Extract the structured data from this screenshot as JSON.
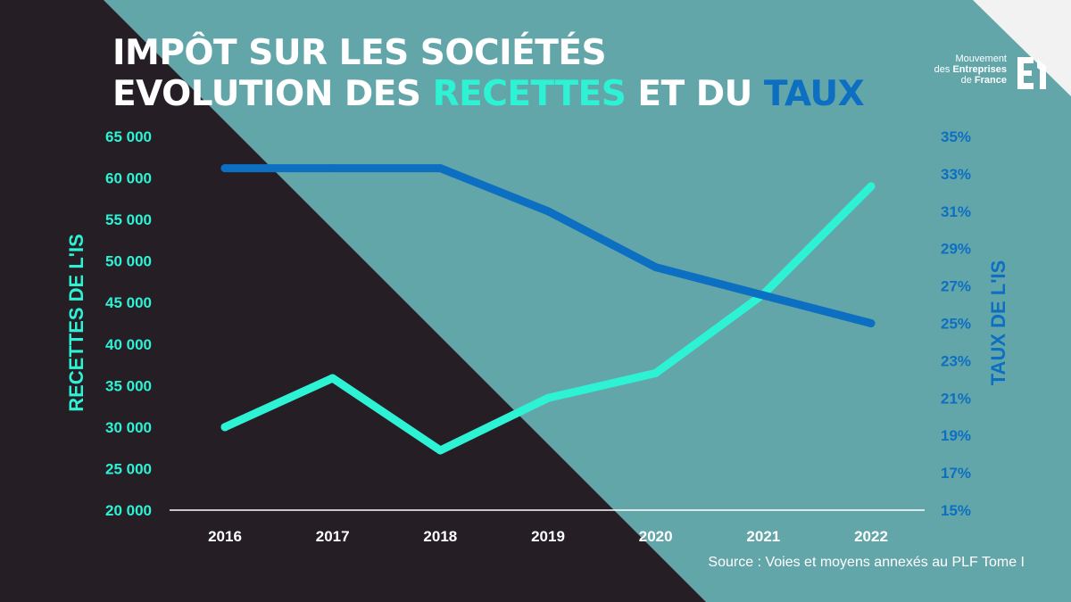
{
  "title": {
    "line1": "IMPÔT SUR LES SOCIÉTÉS",
    "line2_prefix": "EVOLUTION DES ",
    "line2_accent1": "RECETTES",
    "line2_mid": " ET DU ",
    "line2_accent2": "TAUX"
  },
  "logo": {
    "line1": "Mouvement",
    "line2_prefix": "des ",
    "line2_bold": "Entreprises",
    "line3_prefix": "de ",
    "line3_bold": "France"
  },
  "source": "Source : Voies et moyens annexés au PLF Tome I",
  "colors": {
    "dark_bg": "#251e25",
    "teal_bg": "#63a6aa",
    "corner": "#f2f2f2",
    "revenue_line": "#2ef2d4",
    "rate_line": "#0d6fc2",
    "baseline": "#ffffff"
  },
  "chart_data": {
    "type": "line",
    "categories": [
      "2016",
      "2017",
      "2018",
      "2019",
      "2020",
      "2021",
      "2022"
    ],
    "y_left": {
      "label": "RECETTES DE L'IS",
      "ylim": [
        20000,
        65000
      ],
      "ticks": [
        "20 000",
        "25 000",
        "30 000",
        "35 000",
        "40 000",
        "45 000",
        "50 000",
        "55 000",
        "60 000",
        "65 000"
      ]
    },
    "y_right": {
      "label": "TAUX DE L'IS",
      "ylim": [
        15,
        35
      ],
      "ticks": [
        "15%",
        "17%",
        "19%",
        "21%",
        "23%",
        "25%",
        "27%",
        "29%",
        "31%",
        "33%",
        "35%"
      ]
    },
    "series": [
      {
        "key": "revenue",
        "axis": "left",
        "values": [
          30000,
          35900,
          27200,
          33500,
          36500,
          46000,
          59000
        ]
      },
      {
        "key": "rate",
        "axis": "right",
        "values": [
          33.3,
          33.3,
          33.3,
          31.0,
          28.0,
          26.5,
          25.0
        ]
      }
    ],
    "grid": false,
    "legend": "none"
  }
}
